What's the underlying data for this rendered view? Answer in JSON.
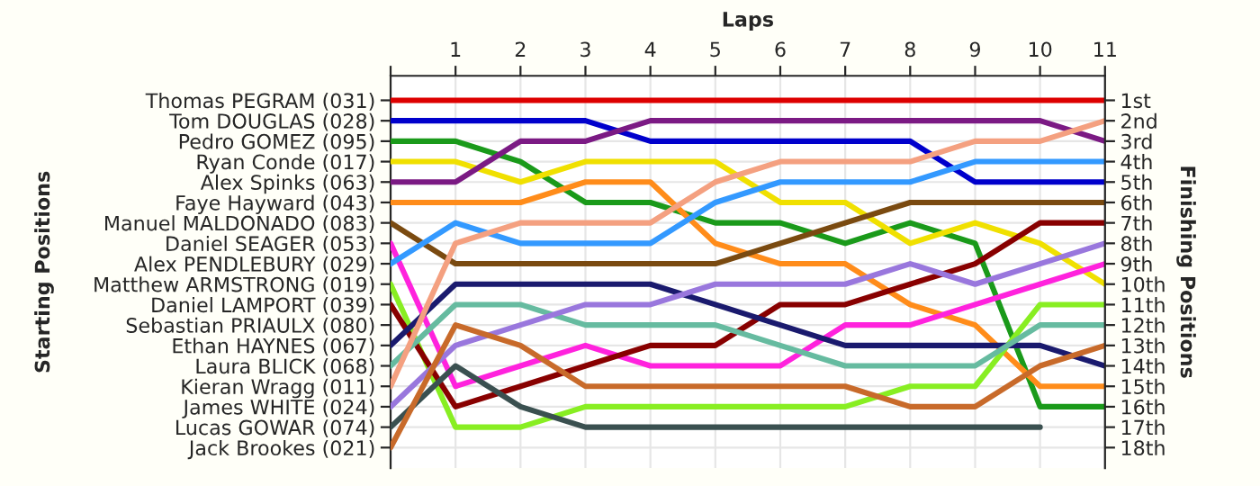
{
  "chart_data": {
    "type": "line",
    "xlabel": "Laps",
    "y2label": "Finishing Positions",
    "annotations": [
      "Starting Positions",
      "Sebastian PRIAULX (080)"
    ],
    "x": [
      0,
      1,
      2,
      3,
      4,
      5,
      6,
      7,
      8,
      9,
      10,
      11
    ],
    "xlim": [
      0,
      11
    ],
    "xticks": [
      {
        "value": 0,
        "label": null
      },
      1,
      2,
      3,
      4,
      5,
      6,
      7,
      8,
      9,
      10,
      11
    ],
    "y2lim": [
      19,
      -0.2
    ],
    "y2ticks": [
      {
        "value": 1,
        "label": "1st"
      },
      {
        "value": 2,
        "label": "2nd"
      },
      {
        "value": 3,
        "label": "3rd"
      },
      {
        "value": 4,
        "label": "4th"
      },
      {
        "value": 5,
        "label": "5th"
      },
      {
        "value": 6,
        "label": "6th"
      },
      {
        "value": 7,
        "label": "7th"
      },
      {
        "value": 8,
        "label": "8th"
      },
      {
        "value": 9,
        "label": "9th"
      },
      {
        "value": 10,
        "label": "10th"
      },
      {
        "value": 11,
        "label": "11th"
      },
      {
        "value": 12,
        "label": "12th"
      },
      {
        "value": 13,
        "label": "13th"
      },
      {
        "value": 14,
        "label": "14th"
      },
      {
        "value": 15,
        "label": "15th"
      },
      {
        "value": 16,
        "label": "16th"
      },
      {
        "value": 17,
        "label": "17th"
      },
      {
        "value": 18,
        "label": "18th"
      }
    ],
    "grid": true,
    "marker": "none",
    "line_style": "solid",
    "series": [
      {
        "name": "Thomas PEGRAM (031)",
        "axis": "y2",
        "color": "#dd0000",
        "values": [
          1,
          1,
          1,
          1,
          1,
          1,
          1,
          1,
          1,
          1,
          1,
          1
        ]
      },
      {
        "name": "Tom DOUGLAS (028)",
        "axis": "y2",
        "color": "#0000cc",
        "values": [
          2,
          2,
          2,
          2,
          3,
          3,
          3,
          3,
          3,
          5,
          5,
          5
        ]
      },
      {
        "name": "Pedro GOMEZ (095)",
        "axis": "y2",
        "color": "#1a9a1a",
        "values": [
          3,
          3,
          4,
          6,
          6,
          7,
          7,
          8,
          7,
          8,
          16,
          16
        ]
      },
      {
        "name": "Ryan Conde (017)",
        "axis": "y2",
        "color": "#f0e000",
        "values": [
          4,
          4,
          5,
          4,
          4,
          4,
          6,
          6,
          8,
          7,
          8,
          10
        ]
      },
      {
        "name": "Alex Spinks (063)",
        "axis": "y2",
        "color": "#7b1a84",
        "values": [
          5,
          5,
          3,
          3,
          2,
          2,
          2,
          2,
          2,
          2,
          2,
          3
        ]
      },
      {
        "name": "Faye Hayward (043)",
        "axis": "y2",
        "color": "#ff8c1a",
        "values": [
          6,
          6,
          6,
          5,
          5,
          8,
          9,
          9,
          11,
          12,
          15,
          15
        ]
      },
      {
        "name": "Manuel MALDONADO (083)",
        "axis": "y2",
        "color": "#7a4a10",
        "values": [
          7,
          9,
          9,
          9,
          9,
          9,
          8,
          7,
          6,
          6,
          6,
          6
        ]
      },
      {
        "name": "Daniel SEAGER (053)",
        "axis": "y2",
        "color": "#ff22dd",
        "values": [
          8,
          15,
          14,
          13,
          14,
          14,
          14,
          12,
          12,
          11,
          10,
          9
        ]
      },
      {
        "name": "Alex PENDLEBURY (029)",
        "axis": "y2",
        "color": "#3399ff",
        "values": [
          9,
          7,
          8,
          8,
          8,
          6,
          5,
          5,
          5,
          4,
          4,
          4
        ]
      },
      {
        "name": "Matthew ARMSTRONG (019)",
        "axis": "y2",
        "color": "#88ee22",
        "values": [
          10,
          17,
          17,
          16,
          16,
          16,
          16,
          16,
          15,
          15,
          11,
          11
        ]
      },
      {
        "name": "Daniel LAMPORT (039)",
        "axis": "y2",
        "color": "#880000",
        "values": [
          11,
          16,
          15,
          14,
          13,
          13,
          11,
          11,
          10,
          9,
          7,
          7
        ]
      },
      {
        "name": "Ethan HAYNES (067)",
        "axis": "y2",
        "color": "#1a1a6e",
        "values": [
          13,
          10,
          10,
          10,
          10,
          11,
          12,
          13,
          13,
          13,
          13,
          14
        ]
      },
      {
        "name": "Laura BLICK (068)",
        "axis": "y2",
        "color": "#66bba0",
        "values": [
          14,
          11,
          11,
          12,
          12,
          12,
          13,
          14,
          14,
          14,
          12,
          12
        ]
      },
      {
        "name": "Kieran Wragg (011)",
        "axis": "y2",
        "color": "#f4a080",
        "values": [
          15,
          8,
          7,
          7,
          7,
          5,
          4,
          4,
          4,
          3,
          3,
          2
        ]
      },
      {
        "name": "James WHITE (024)",
        "axis": "y2",
        "color": "#9977dd",
        "values": [
          16,
          13,
          12,
          11,
          11,
          10,
          10,
          10,
          9,
          10,
          9,
          8
        ]
      },
      {
        "name": "Lucas GOWAR (074)",
        "axis": "y2",
        "color": "#3a5050",
        "values": [
          17,
          14,
          16,
          17,
          17,
          17,
          17,
          17,
          17,
          17,
          17,
          null
        ]
      },
      {
        "name": "Jack Brookes (021)",
        "axis": "y2",
        "color": "#c86a2a",
        "values": [
          18,
          12,
          13,
          15,
          15,
          15,
          15,
          15,
          16,
          16,
          14,
          13
        ]
      }
    ]
  }
}
